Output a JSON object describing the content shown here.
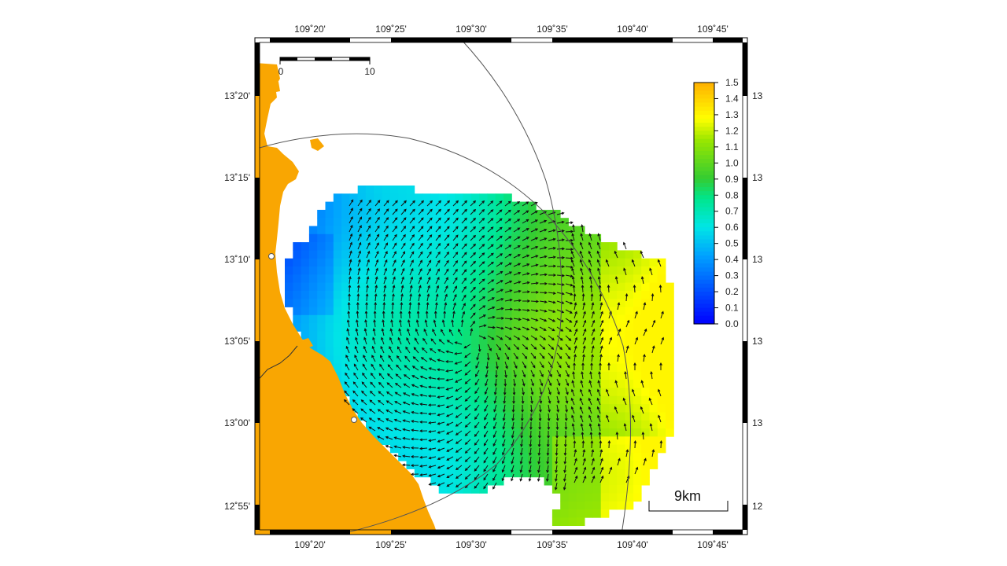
{
  "map": {
    "top_lon_labels": [
      "109˚20'",
      "109˚25'",
      "109˚30'",
      "109˚35'",
      "109˚40'",
      "109˚45'"
    ],
    "bottom_lon_labels": [
      "109˚20'",
      "109˚25'",
      "109˚30'",
      "109˚35'",
      "109˚40'",
      "109˚45'"
    ],
    "left_lat_labels": [
      "13˚20'",
      "13˚15'",
      "13˚10'",
      "13˚05'",
      "13˚00'",
      "12˚55'"
    ],
    "right_lat_labels": [
      "13",
      "13",
      "13",
      "13",
      "13",
      "12"
    ],
    "inset_scale": {
      "start": "0",
      "end": "10"
    },
    "scale_bar_label": "9km",
    "land_color": "#F9A602",
    "colorbar": {
      "ticks": [
        "1.5",
        "1.4",
        "1.3",
        "1.2",
        "1.1",
        "1.0",
        "0.9",
        "0.8",
        "0.7",
        "0.6",
        "0.5",
        "0.4",
        "0.3",
        "0.2",
        "0.1",
        "0.0"
      ],
      "min": 0.0,
      "max": 1.5,
      "colors": [
        "#0000FF",
        "#00A0FF",
        "#00E6E6",
        "#00E68C",
        "#33CC33",
        "#99E600",
        "#FFFF00",
        "#FFB000"
      ]
    },
    "layers": [
      "coastline",
      "speed-grid",
      "current-vectors",
      "radar-range-circles"
    ]
  }
}
